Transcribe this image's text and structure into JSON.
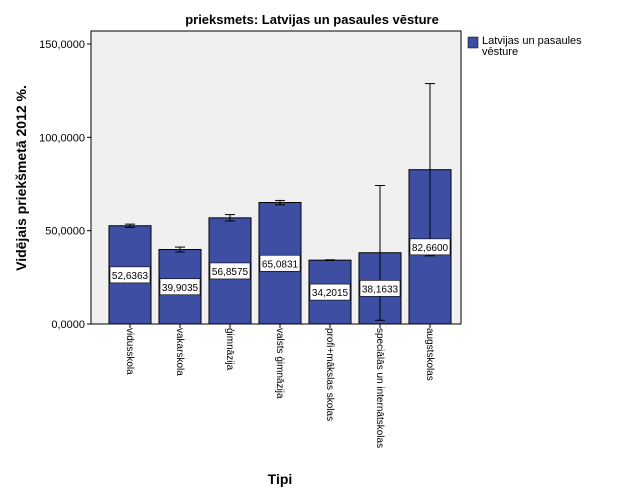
{
  "chart_data": {
    "type": "bar",
    "title": "prieksmets: Latvijas un pasaules vēsture",
    "xlabel": "Tipi",
    "ylabel": "Vidējais priekšmetā 2012 %.",
    "ylim": [
      0,
      150
    ],
    "yticks": [
      0,
      50,
      100,
      150
    ],
    "ytick_labels": [
      "0,0000",
      "50,0000",
      "100,0000",
      "150,0000"
    ],
    "grid": false,
    "legend_position": "top-right",
    "categories": [
      "vidusskola",
      "vakarskola",
      "ģimnāzija",
      "valsts ģimnāzija",
      "profi+mākslas skolas",
      "speciālās un internātskolas",
      "augstskolas"
    ],
    "series": [
      {
        "name": "Latvijas un pasaules vēsture",
        "color": "#3e4fa3",
        "values": [
          52.6363,
          39.9035,
          56.8575,
          65.0831,
          34.2015,
          38.1633,
          82.66
        ],
        "value_labels": [
          "52,6363",
          "39,9035",
          "56,8575",
          "65,0831",
          "34,2015",
          "38,1633",
          "82,6600"
        ],
        "error_low": [
          51.8,
          38.6,
          55.2,
          63.9,
          34.0,
          2.0,
          36.5
        ],
        "error_high": [
          53.5,
          41.2,
          58.6,
          66.2,
          34.4,
          74.2,
          128.8
        ]
      }
    ]
  }
}
